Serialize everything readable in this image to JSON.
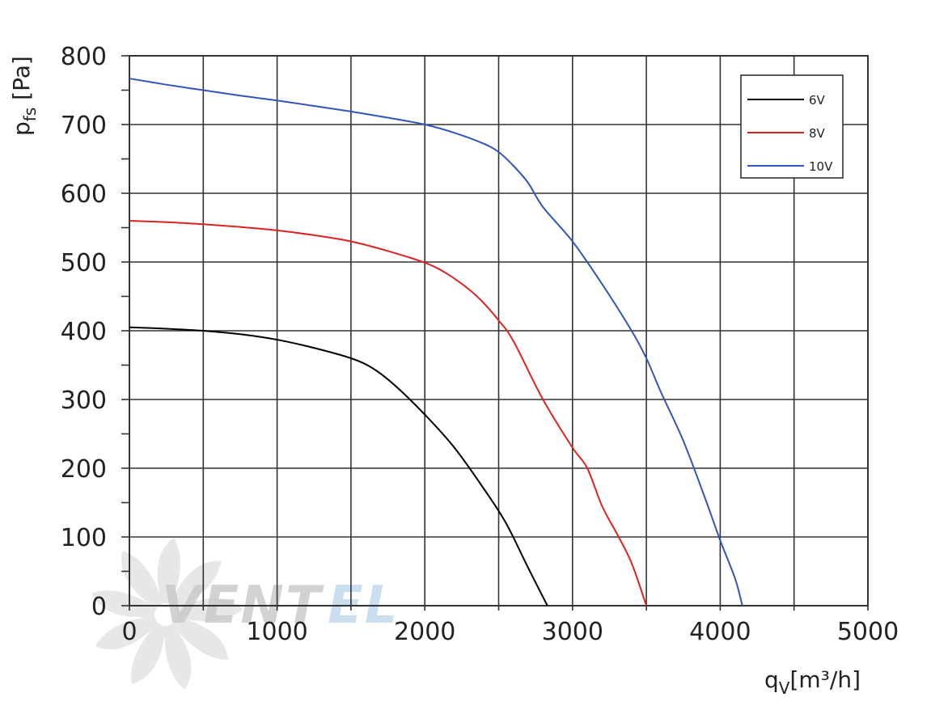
{
  "chart_data": {
    "type": "line",
    "title": "",
    "xlabel": {
      "main": "q",
      "sub": "V",
      "unit": "[m³/h]"
    },
    "ylabel": {
      "main": "p",
      "sub": "fs",
      "unit": "[Pa]"
    },
    "xlim": [
      0,
      5000
    ],
    "ylim": [
      0,
      800
    ],
    "x_ticks": [
      0,
      1000,
      2000,
      3000,
      4000,
      5000
    ],
    "y_ticks": [
      0,
      100,
      200,
      300,
      400,
      500,
      600,
      700,
      800
    ],
    "grid": true,
    "legend_position": "top-right",
    "series": [
      {
        "name": "6V",
        "color": "#000000",
        "points": [
          [
            0,
            405
          ],
          [
            250,
            403
          ],
          [
            500,
            400
          ],
          [
            750,
            395
          ],
          [
            1000,
            387
          ],
          [
            1250,
            375
          ],
          [
            1500,
            360
          ],
          [
            1650,
            345
          ],
          [
            1800,
            320
          ],
          [
            2000,
            278
          ],
          [
            2200,
            230
          ],
          [
            2400,
            170
          ],
          [
            2550,
            120
          ],
          [
            2700,
            55
          ],
          [
            2830,
            0
          ]
        ]
      },
      {
        "name": "8V",
        "color": "#dd2222",
        "points": [
          [
            0,
            560
          ],
          [
            250,
            558
          ],
          [
            500,
            555
          ],
          [
            750,
            551
          ],
          [
            1000,
            546
          ],
          [
            1250,
            539
          ],
          [
            1500,
            530
          ],
          [
            1750,
            516
          ],
          [
            2000,
            499
          ],
          [
            2150,
            483
          ],
          [
            2300,
            460
          ],
          [
            2400,
            440
          ],
          [
            2500,
            415
          ],
          [
            2600,
            385
          ],
          [
            2800,
            300
          ],
          [
            3000,
            230
          ],
          [
            3100,
            200
          ],
          [
            3200,
            145
          ],
          [
            3300,
            105
          ],
          [
            3400,
            62
          ],
          [
            3500,
            0
          ]
        ]
      },
      {
        "name": "10V",
        "color": "#3355bb",
        "points": [
          [
            0,
            767
          ],
          [
            250,
            758
          ],
          [
            500,
            750
          ],
          [
            750,
            742
          ],
          [
            1000,
            735
          ],
          [
            1250,
            727
          ],
          [
            1500,
            719
          ],
          [
            1750,
            710
          ],
          [
            2000,
            700
          ],
          [
            2200,
            688
          ],
          [
            2400,
            672
          ],
          [
            2500,
            660
          ],
          [
            2600,
            640
          ],
          [
            2700,
            615
          ],
          [
            2800,
            580
          ],
          [
            3000,
            530
          ],
          [
            3200,
            468
          ],
          [
            3400,
            400
          ],
          [
            3500,
            360
          ],
          [
            3600,
            310
          ],
          [
            3750,
            240
          ],
          [
            3900,
            155
          ],
          [
            4000,
            95
          ],
          [
            4100,
            40
          ],
          [
            4150,
            0
          ]
        ]
      }
    ]
  },
  "watermark": {
    "text_left": "VENT",
    "text_right": "EL",
    "color_left": "#c8c8c8",
    "color_right": "#c6dbef"
  },
  "colors": {
    "grid": "#333333",
    "background": "#ffffff"
  }
}
